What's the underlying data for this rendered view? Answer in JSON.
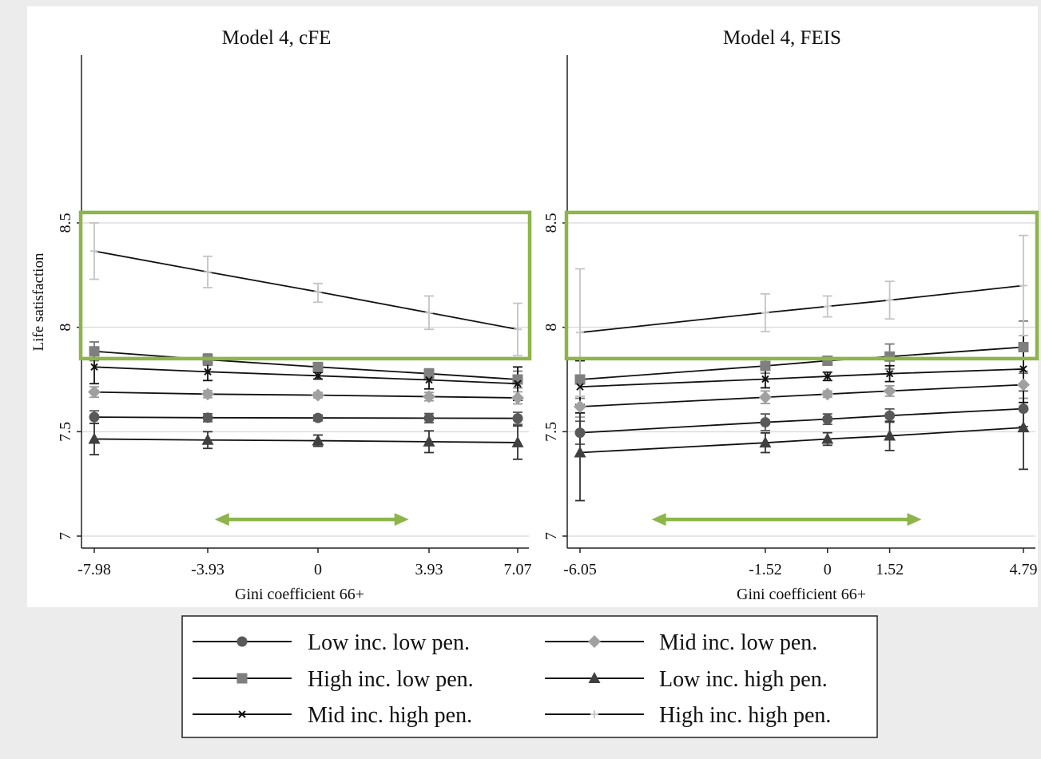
{
  "y_axis_label": "Life satisfaction",
  "y_ticks": [
    7,
    7.5,
    8,
    8.5
  ],
  "legend": [
    {
      "name": "Low inc. low pen.",
      "marker": "circle",
      "color": "#595959"
    },
    {
      "name": "Mid inc. low pen.",
      "marker": "diamond",
      "color": "#a0a0a0"
    },
    {
      "name": "High inc. low pen.",
      "marker": "square",
      "color": "#7f7f7f"
    },
    {
      "name": "Low inc. high pen.",
      "marker": "triangle",
      "color": "#404040"
    },
    {
      "name": "Mid inc. high pen.",
      "marker": "x",
      "color": "#111111"
    },
    {
      "name": "High inc. high pen.",
      "marker": "plus",
      "color": "#c8c8c8"
    }
  ],
  "highlight_color": "#8db54a",
  "chart_data": [
    {
      "type": "line",
      "title": "Model 4, cFE",
      "xlabel": "Gini coefficient 66+",
      "ylabel": "Life satisfaction",
      "x": [
        -7.98,
        -3.93,
        0,
        3.93,
        7.07
      ],
      "x_tick_labels": [
        "-7.98",
        "-3.93",
        "0",
        "3.93",
        "7.07"
      ],
      "ylim": [
        7,
        8.5
      ],
      "series": [
        {
          "name": "Low inc. low pen.",
          "values": [
            7.57,
            7.567,
            7.566,
            7.565,
            7.564
          ],
          "ci_low": [
            7.54,
            7.548,
            7.552,
            7.543,
            7.535
          ],
          "ci_high": [
            7.6,
            7.586,
            7.58,
            7.587,
            7.593
          ]
        },
        {
          "name": "Mid inc. low pen.",
          "values": [
            7.69,
            7.68,
            7.675,
            7.668,
            7.662
          ],
          "ci_low": [
            7.665,
            7.663,
            7.662,
            7.648,
            7.633
          ],
          "ci_high": [
            7.715,
            7.697,
            7.688,
            7.688,
            7.691
          ]
        },
        {
          "name": "High inc. low pen.",
          "values": [
            7.885,
            7.845,
            7.81,
            7.778,
            7.75
          ],
          "ci_low": [
            7.84,
            7.818,
            7.797,
            7.755,
            7.71
          ],
          "ci_high": [
            7.93,
            7.872,
            7.823,
            7.801,
            7.79
          ]
        },
        {
          "name": "Low inc. high pen.",
          "values": [
            7.465,
            7.46,
            7.457,
            7.452,
            7.448
          ],
          "ci_low": [
            7.39,
            7.42,
            7.43,
            7.4,
            7.368
          ],
          "ci_high": [
            7.54,
            7.5,
            7.484,
            7.504,
            7.528
          ]
        },
        {
          "name": "Mid inc. high pen.",
          "values": [
            7.81,
            7.787,
            7.768,
            7.748,
            7.73
          ],
          "ci_low": [
            7.73,
            7.745,
            7.752,
            7.705,
            7.65
          ],
          "ci_high": [
            7.89,
            7.829,
            7.784,
            7.791,
            7.81
          ]
        },
        {
          "name": "High inc. high pen.",
          "values": [
            8.365,
            8.265,
            8.17,
            8.07,
            7.99
          ],
          "ci_low": [
            8.23,
            8.19,
            8.12,
            7.99,
            7.865
          ],
          "ci_high": [
            8.5,
            8.34,
            8.21,
            8.15,
            8.115
          ]
        }
      ],
      "grid": "horizontal",
      "highlight_range_y": [
        7.85,
        8.55
      ],
      "arrow_range_x": [
        -3.7,
        3.2
      ]
    },
    {
      "type": "line",
      "title": "Model 4, FEIS",
      "xlabel": "Gini coefficient 66+",
      "ylabel": "",
      "x": [
        -6.05,
        -1.52,
        0,
        1.52,
        4.79
      ],
      "x_tick_labels": [
        "-6.05",
        "-1.52",
        "0",
        "1.52",
        "4.79"
      ],
      "ylim": [
        7,
        8.5
      ],
      "series": [
        {
          "name": "Low inc. low pen.",
          "values": [
            7.495,
            7.545,
            7.56,
            7.577,
            7.61
          ],
          "ci_low": [
            7.44,
            7.505,
            7.535,
            7.545,
            7.525
          ],
          "ci_high": [
            7.55,
            7.585,
            7.585,
            7.609,
            7.695
          ]
        },
        {
          "name": "Mid inc. low pen.",
          "values": [
            7.62,
            7.665,
            7.68,
            7.695,
            7.725
          ],
          "ci_low": [
            7.57,
            7.635,
            7.665,
            7.67,
            7.66
          ],
          "ci_high": [
            7.67,
            7.695,
            7.695,
            7.72,
            7.79
          ]
        },
        {
          "name": "High inc. low pen.",
          "values": [
            7.75,
            7.815,
            7.84,
            7.86,
            7.905
          ],
          "ci_low": [
            7.66,
            7.78,
            7.82,
            7.8,
            7.78
          ],
          "ci_high": [
            7.84,
            7.85,
            7.86,
            7.92,
            8.03
          ]
        },
        {
          "name": "Low inc. high pen.",
          "values": [
            7.4,
            7.447,
            7.465,
            7.48,
            7.52
          ],
          "ci_low": [
            7.17,
            7.4,
            7.435,
            7.41,
            7.32
          ],
          "ci_high": [
            7.63,
            7.494,
            7.495,
            7.55,
            7.72
          ]
        },
        {
          "name": "Mid inc. high pen.",
          "values": [
            7.715,
            7.752,
            7.765,
            7.778,
            7.8
          ],
          "ci_low": [
            7.59,
            7.71,
            7.745,
            7.74,
            7.64
          ],
          "ci_high": [
            7.84,
            7.794,
            7.785,
            7.816,
            7.96
          ]
        },
        {
          "name": "High inc. high pen.",
          "values": [
            7.975,
            8.07,
            8.1,
            8.13,
            8.2
          ],
          "ci_low": [
            7.67,
            7.98,
            8.05,
            8.04,
            7.96
          ],
          "ci_high": [
            8.28,
            8.16,
            8.15,
            8.22,
            8.44
          ]
        }
      ],
      "grid": "horizontal",
      "highlight_range_y": [
        7.85,
        8.55
      ],
      "arrow_range_x": [
        -4.3,
        2.3
      ]
    }
  ]
}
